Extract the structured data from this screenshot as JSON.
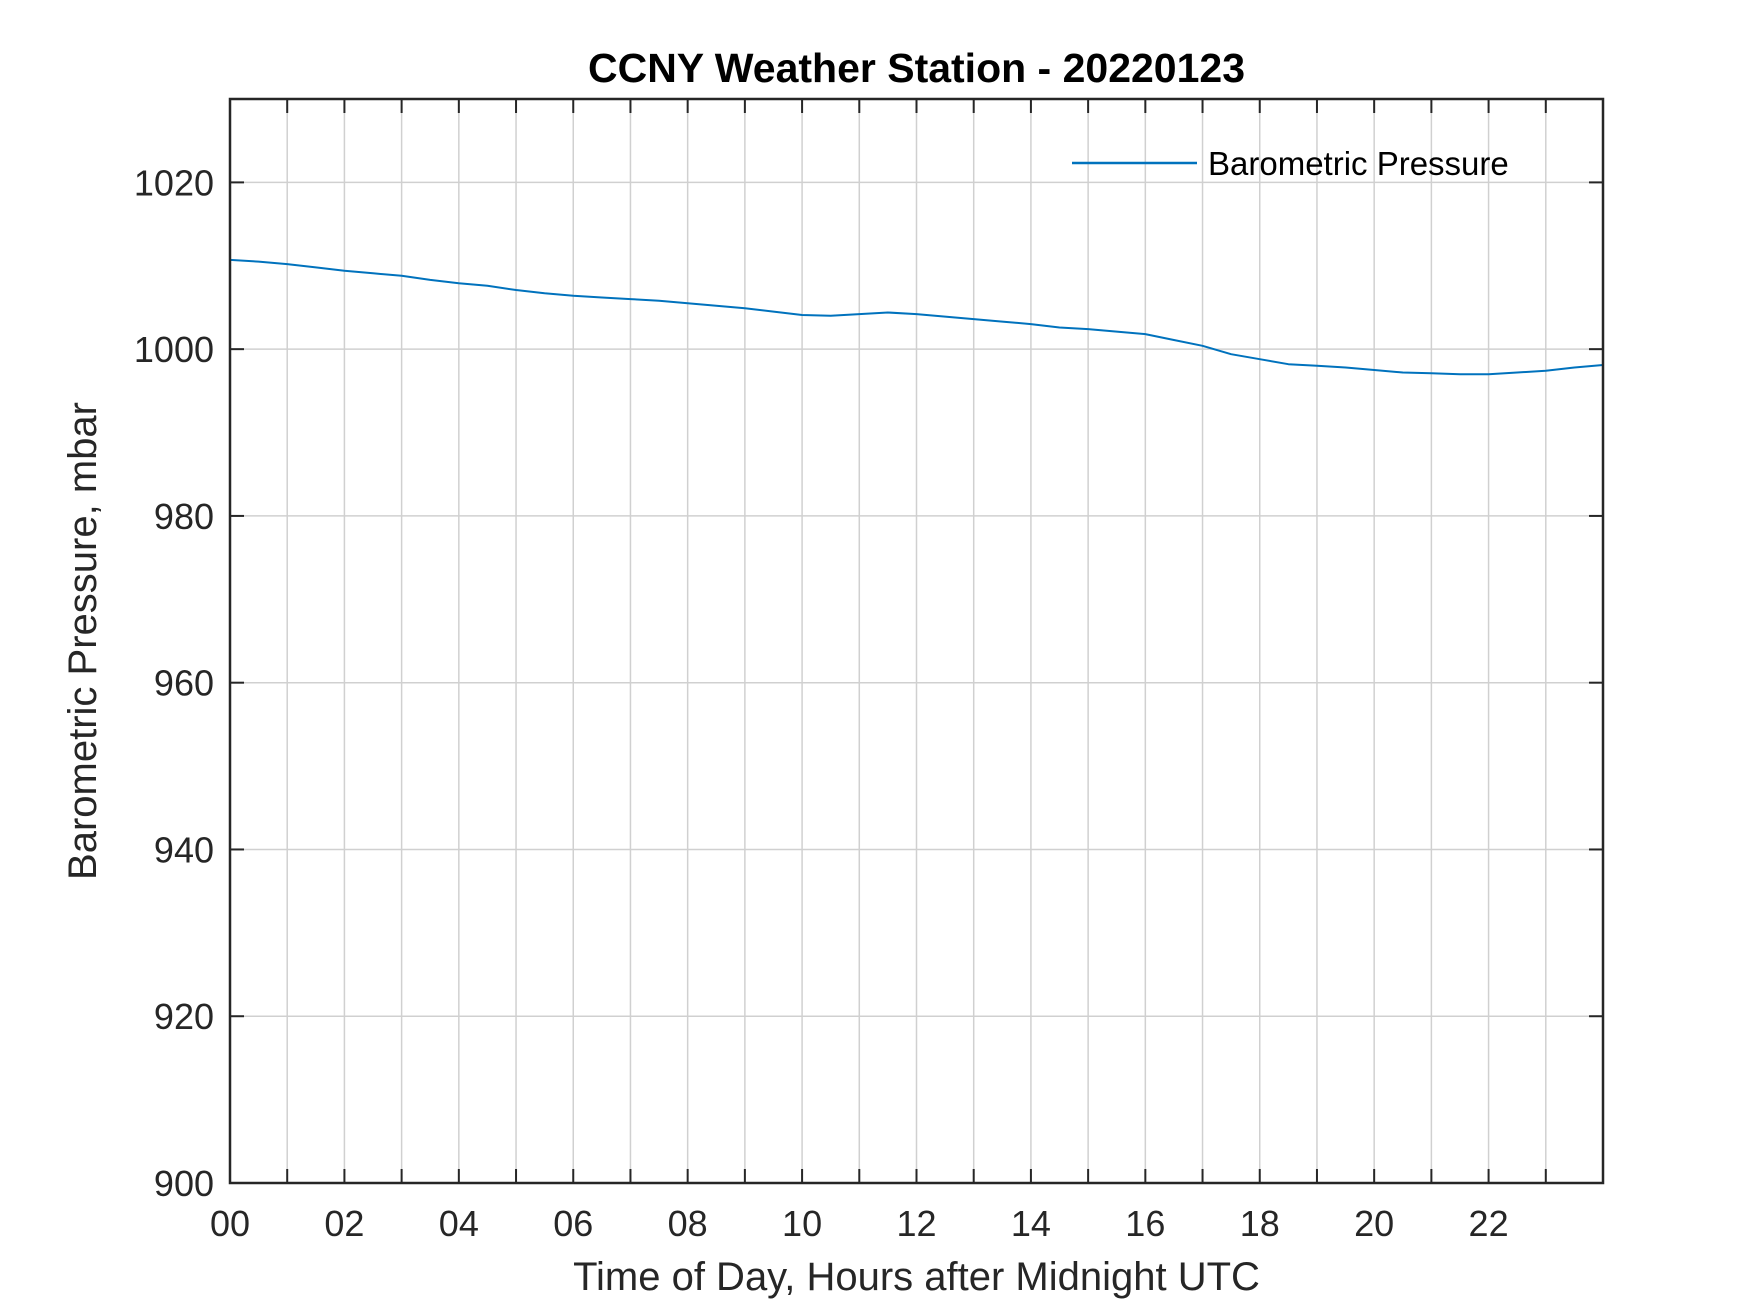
{
  "chart_data": {
    "type": "line",
    "title": "CCNY Weather Station - 20220123",
    "xlabel": "Time of Day, Hours after Midnight UTC",
    "ylabel": "Barometric Pressure, mbar",
    "xlim": [
      0,
      24
    ],
    "ylim": [
      900,
      1030
    ],
    "x_ticks": [
      0,
      2,
      4,
      6,
      8,
      10,
      12,
      14,
      16,
      18,
      20,
      22
    ],
    "x_tick_labels": [
      "00",
      "02",
      "04",
      "06",
      "08",
      "10",
      "12",
      "14",
      "16",
      "18",
      "20",
      "22"
    ],
    "x_minor_grid": [
      1,
      3,
      5,
      7,
      9,
      11,
      13,
      15,
      17,
      19,
      21,
      23
    ],
    "y_ticks": [
      900,
      920,
      940,
      960,
      980,
      1000,
      1020
    ],
    "y_tick_labels": [
      "900",
      "920",
      "940",
      "960",
      "980",
      "1000",
      "1020"
    ],
    "grid": true,
    "legend_position": "top-right",
    "series": [
      {
        "name": "Barometric Pressure",
        "color": "#0072BD",
        "x": [
          0,
          0.5,
          1,
          1.5,
          2,
          2.5,
          3,
          3.5,
          4,
          4.5,
          5,
          5.5,
          6,
          6.5,
          7,
          7.5,
          8,
          8.5,
          9,
          9.5,
          10,
          10.5,
          11,
          11.5,
          12,
          12.5,
          13,
          13.5,
          14,
          14.5,
          15,
          15.5,
          16,
          16.5,
          17,
          17.5,
          18,
          18.5,
          19,
          19.5,
          20,
          20.5,
          21,
          21.5,
          22,
          22.5,
          23,
          23.5,
          24
        ],
        "y": [
          1010.7,
          1010.5,
          1010.2,
          1009.8,
          1009.4,
          1009.1,
          1008.8,
          1008.3,
          1007.9,
          1007.6,
          1007.1,
          1006.7,
          1006.4,
          1006.2,
          1006.0,
          1005.8,
          1005.5,
          1005.2,
          1004.9,
          1004.5,
          1004.1,
          1004.0,
          1004.2,
          1004.4,
          1004.2,
          1003.9,
          1003.6,
          1003.3,
          1003.0,
          1002.6,
          1002.4,
          1002.1,
          1001.8,
          1001.1,
          1000.4,
          999.4,
          998.8,
          998.2,
          998.0,
          997.8,
          997.5,
          997.2,
          997.1,
          997.0,
          997.0,
          997.2,
          997.4,
          997.8,
          998.1
        ]
      }
    ]
  }
}
